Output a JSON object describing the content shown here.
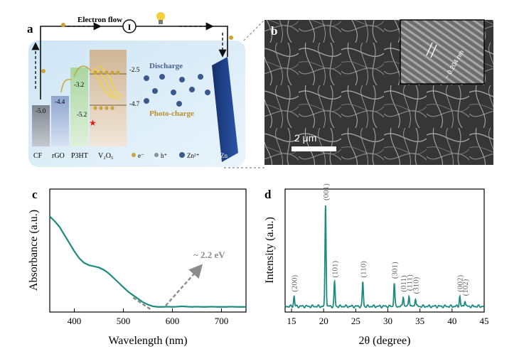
{
  "panels": {
    "a": {
      "label": "a",
      "electron_flow": "Electron flow",
      "meter": "I",
      "layers": [
        "CF",
        "rGO",
        "P3HT",
        "V₂O₅"
      ],
      "levels": [
        "-5.0",
        "-4.4",
        "-3.2",
        "-5.2",
        "-2.5",
        "-4.7"
      ],
      "discharge": "Discharge",
      "photo_charge": "Photo-charge",
      "anode": "Zn",
      "legend": {
        "electron": "e⁻",
        "hole": "h⁺",
        "zinc": "Zn²⁺"
      },
      "colors": {
        "background": "#dcecf7",
        "cf": "#8a8f96",
        "rgo": "#9fb2d6",
        "p3ht": "#b9dcb0",
        "v2o5": "#d9c4a8",
        "zn": "#1d3f86",
        "photo_charge": "#c8a034",
        "discharge": "#5b6f9a"
      }
    },
    "b": {
      "label": "b",
      "scale_bar": "2 μm",
      "lattice": "~ 0.204 nm"
    },
    "c": {
      "label": "c",
      "chart_data": {
        "type": "line",
        "xlabel": "Wavelength (nm)",
        "ylabel": "Absorbance (a.u.)",
        "xlim": [
          350,
          750
        ],
        "ylim": [
          0,
          1
        ],
        "xticks": [
          "400",
          "500",
          "600",
          "700"
        ],
        "annotation": "~ 2.2 eV",
        "series": [
          {
            "color": "#1e8a80",
            "x": [
              350,
              360,
              370,
              380,
              390,
              400,
              410,
              420,
              430,
              440,
              450,
              460,
              470,
              480,
              490,
              500,
              510,
              520,
              530,
              540,
              550,
              560,
              570,
              580,
              590,
              600,
              610,
              620,
              630,
              640,
              650,
              660,
              670,
              680,
              690,
              700,
              710,
              720,
              730,
              740,
              750
            ],
            "y": [
              0.8,
              0.76,
              0.71,
              0.64,
              0.57,
              0.5,
              0.44,
              0.4,
              0.38,
              0.37,
              0.36,
              0.34,
              0.31,
              0.27,
              0.23,
              0.19,
              0.15,
              0.12,
              0.09,
              0.06,
              0.04,
              0.025,
              0.02,
              0.02,
              0.022,
              0.02,
              0.022,
              0.025,
              0.022,
              0.02,
              0.022,
              0.02,
              0.02,
              0.022,
              0.02,
              0.02,
              0.02,
              0.022,
              0.02,
              0.02,
              0.02
            ]
          }
        ],
        "tangent": {
          "x": [
            520,
            555
          ],
          "y": [
            0.1,
            0.0
          ],
          "color": "#8c8c8c"
        }
      }
    },
    "d": {
      "label": "d",
      "chart_data": {
        "type": "line",
        "xlabel": "2θ (degree)",
        "ylabel": "Intensity (a.u.)",
        "xlim": [
          14,
          45
        ],
        "ylim": [
          0,
          1
        ],
        "xticks": [
          "15",
          "20",
          "25",
          "30",
          "35",
          "40",
          "45"
        ],
        "series": [
          {
            "color": "#1e8a80"
          }
        ],
        "peaks": [
          {
            "x": 15.4,
            "y": 0.1,
            "label": "(200)"
          },
          {
            "x": 20.3,
            "y": 1.0,
            "label": "(001)"
          },
          {
            "x": 21.7,
            "y": 0.24,
            "label": "(101)"
          },
          {
            "x": 26.1,
            "y": 0.24,
            "label": "(110)"
          },
          {
            "x": 31.0,
            "y": 0.23,
            "label": "(301)"
          },
          {
            "x": 32.4,
            "y": 0.1,
            "label": "(011)"
          },
          {
            "x": 33.3,
            "y": 0.11,
            "label": "(111)"
          },
          {
            "x": 34.3,
            "y": 0.08,
            "label": "(310)"
          },
          {
            "x": 41.2,
            "y": 0.1,
            "label": "(002)"
          },
          {
            "x": 42.0,
            "y": 0.06,
            "label": "(102)"
          }
        ]
      }
    }
  }
}
